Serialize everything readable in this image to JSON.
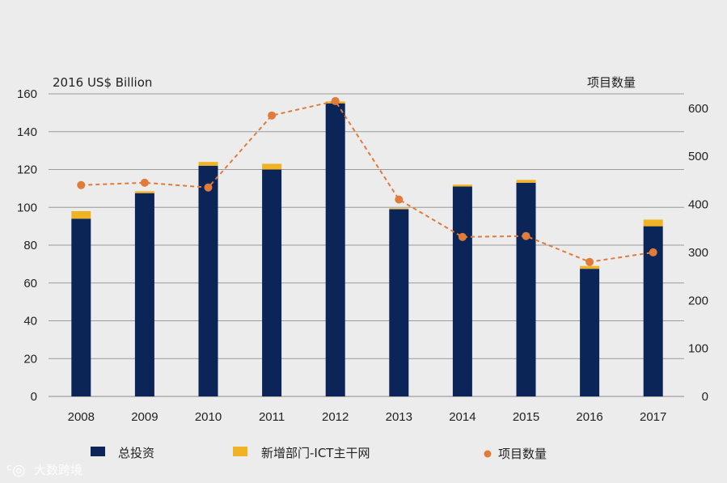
{
  "chart_data": {
    "type": "bar",
    "categories": [
      "2008",
      "2009",
      "2010",
      "2011",
      "2012",
      "2013",
      "2014",
      "2015",
      "2016",
      "2017"
    ],
    "series": [
      {
        "name": "总投资",
        "type": "bar",
        "axis": "left",
        "stack": "total",
        "color": "#0b2559",
        "values": [
          94,
          107.5,
          122,
          120,
          155,
          99,
          111,
          113,
          67.5,
          90
        ]
      },
      {
        "name": "新增部门-ICT主干网",
        "type": "bar",
        "axis": "left",
        "stack": "total",
        "color": "#f0b323",
        "values": [
          4,
          1,
          2,
          3,
          1,
          0.5,
          1,
          1.5,
          1.5,
          3.5
        ]
      },
      {
        "name": "项目数量",
        "type": "line",
        "axis": "right",
        "line_style": "dashed",
        "color": "#e07b39",
        "values": [
          440,
          445,
          435,
          585,
          615,
          410,
          332,
          334,
          280,
          300
        ]
      }
    ],
    "ylabel": "2016 US$ Billion",
    "y2label": "项目数量",
    "ylim": [
      0,
      160
    ],
    "y2lim": [
      0,
      630
    ],
    "yticks": [
      "0",
      "20",
      "40",
      "60",
      "80",
      "100",
      "120",
      "140",
      "160"
    ],
    "y2ticks": [
      "0",
      "100",
      "200",
      "300",
      "400",
      "500",
      "600"
    ],
    "grid": true,
    "legend": "bottom"
  },
  "watermark": {
    "text": "大数跨境"
  }
}
